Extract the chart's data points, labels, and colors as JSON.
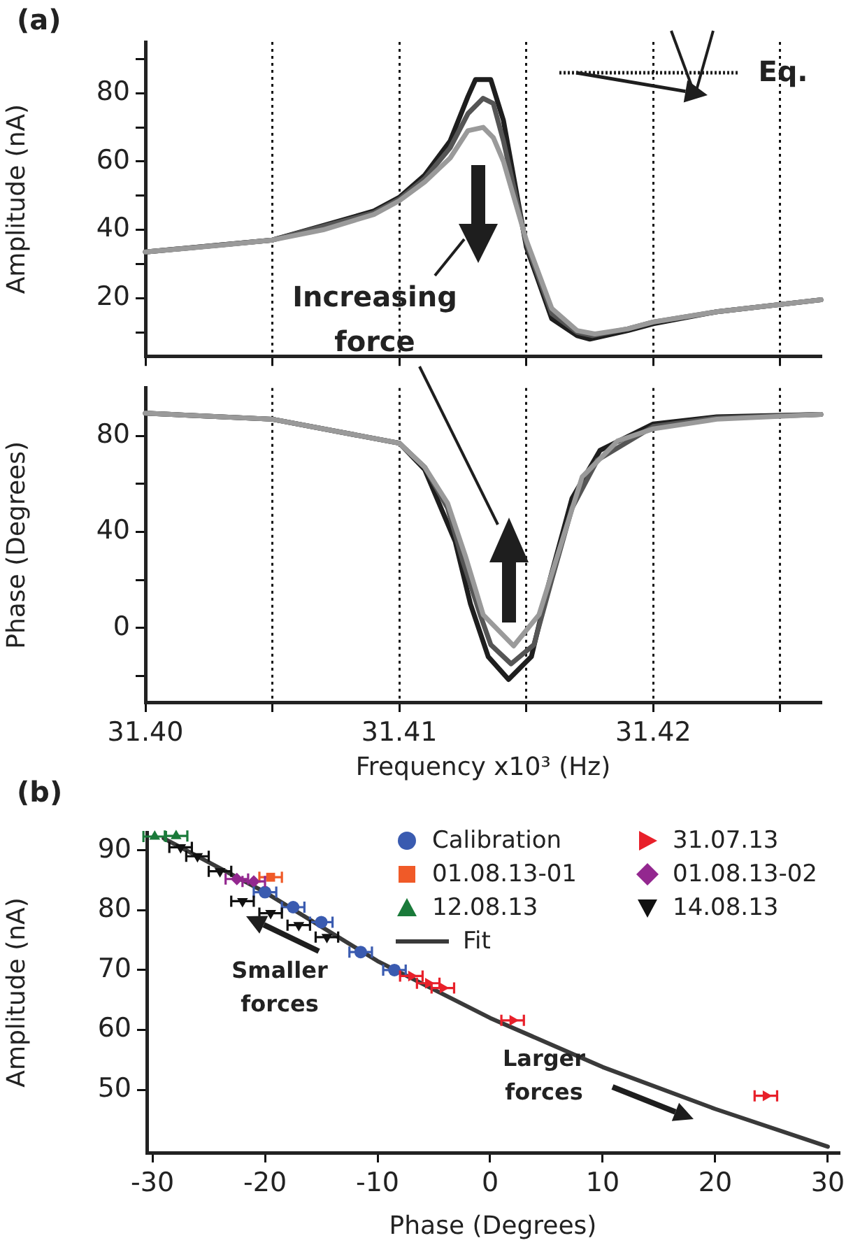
{
  "chart_data": [
    {
      "type": "line",
      "title": "(a)",
      "ylabel": "Amplitude (nA)",
      "annotations": [
        "Eq.",
        "Increasing force"
      ],
      "xlim": [
        31.4,
        31.4266
      ],
      "xticks": [
        31.4,
        31.405,
        31.41,
        31.415,
        31.42,
        31.425
      ],
      "ylim": [
        3,
        95
      ],
      "yticks": [
        {
          "value": 10,
          "label": null
        },
        20,
        {
          "value": 30,
          "label": null
        },
        40,
        {
          "value": 50,
          "label": null
        },
        60,
        {
          "value": 70,
          "label": null
        },
        80,
        {
          "value": 90,
          "label": null
        }
      ],
      "grid": "x",
      "tick_labels": "y",
      "series": [
        {
          "color": "#1e1e1e",
          "x": [
            31.4,
            31.405,
            31.409,
            31.41,
            31.411,
            31.412,
            31.4127,
            31.413,
            31.4136,
            31.4141,
            31.415,
            31.416,
            31.417,
            31.4175,
            31.419,
            31.42,
            31.4225,
            31.4266
          ],
          "values": [
            33.5,
            37,
            45.5,
            49.5,
            56,
            66,
            79,
            84,
            84,
            72,
            35,
            14,
            9,
            8,
            10.5,
            12.5,
            16,
            19.5
          ]
        },
        {
          "color": "#555555",
          "x": [
            31.4,
            31.405,
            31.409,
            31.41,
            31.411,
            31.412,
            31.4127,
            31.4133,
            31.4137,
            31.4141,
            31.415,
            31.416,
            31.417,
            31.4176,
            31.419,
            31.42,
            31.4225,
            31.4266
          ],
          "values": [
            33.5,
            37,
            45,
            49,
            55,
            64,
            74,
            78.5,
            77,
            66,
            36,
            15.5,
            10,
            9,
            11,
            13,
            16,
            19.5
          ]
        },
        {
          "color": "#9a9a9a",
          "x": [
            31.4,
            31.403,
            31.405,
            31.407,
            31.409,
            31.41,
            31.411,
            31.412,
            31.4127,
            31.4133,
            31.4137,
            31.4141,
            31.415,
            31.416,
            31.417,
            31.4177,
            31.419,
            31.42,
            31.4225,
            31.4266
          ],
          "values": [
            33.5,
            35.5,
            37,
            40,
            44.5,
            48.5,
            54,
            61,
            69,
            70,
            67,
            60,
            37,
            17,
            10.5,
            9.5,
            11,
            13,
            16,
            19.5
          ]
        }
      ]
    },
    {
      "type": "line",
      "xlabel": "Frequency x10³ (Hz)",
      "ylabel": "Phase (Degrees)",
      "xlim": [
        31.4,
        31.4266
      ],
      "xticks": [
        {
          "value": 31.4,
          "label": "31.40"
        },
        {
          "value": 31.405,
          "label": null
        },
        31.41,
        {
          "value": 31.415,
          "label": null
        },
        31.42,
        {
          "value": 31.425,
          "label": null
        }
      ],
      "ylim": [
        -31,
        100
      ],
      "yticks": [
        {
          "value": -20,
          "label": null
        },
        0,
        {
          "value": 20,
          "label": null
        },
        40,
        {
          "value": 60,
          "label": null
        },
        80
      ],
      "grid": "x",
      "series": [
        {
          "color": "#1e1e1e",
          "x": [
            31.4,
            31.405,
            31.41,
            31.411,
            31.4122,
            31.4128,
            31.4135,
            31.4143,
            31.4152,
            31.4159,
            31.4168,
            31.4179,
            31.42,
            31.4225,
            31.4266
          ],
          "values": [
            89.5,
            87,
            77,
            66,
            36,
            10,
            -12,
            -21.5,
            -12,
            19,
            54,
            74,
            85,
            88,
            89
          ]
        },
        {
          "color": "#555555",
          "x": [
            31.4,
            31.405,
            31.41,
            31.411,
            31.4119,
            31.4125,
            31.4132,
            31.4136,
            31.4144,
            31.4153,
            31.416,
            31.4168,
            31.4178,
            31.42,
            31.4225,
            31.4266
          ],
          "values": [
            89.5,
            87,
            77,
            67,
            50,
            28,
            5,
            -7,
            -15,
            -7,
            20,
            50,
            70,
            84,
            87.5,
            89
          ]
        },
        {
          "color": "#9a9a9a",
          "x": [
            31.4,
            31.405,
            31.41,
            31.411,
            31.4119,
            31.4126,
            31.4133,
            31.4145,
            31.4155,
            31.4164,
            31.4172,
            31.4186,
            31.42,
            31.4225,
            31.4266
          ],
          "values": [
            89.5,
            87,
            77,
            67,
            52,
            30,
            5.5,
            -7.5,
            5.5,
            36,
            63,
            78,
            83,
            87,
            89
          ]
        }
      ]
    },
    {
      "type": "scatter",
      "title": "(b)",
      "xlabel": "Phase (Degrees)",
      "ylabel": "Amplitude (nA)",
      "annotations": [
        "Smaller forces",
        "Larger forces"
      ],
      "xlim": [
        -30.5,
        31
      ],
      "xticks": [
        -30,
        -20,
        -10,
        0,
        10,
        20,
        30
      ],
      "ylim": [
        39.5,
        93
      ],
      "yticks": [
        50,
        60,
        70,
        80,
        90
      ],
      "legend": "top right",
      "series": [
        {
          "name": "Calibration",
          "color": "#3a5bb0",
          "marker": "circle",
          "x": [
            -20,
            -17.5,
            -15,
            -11.5,
            -8.5
          ],
          "values": [
            83,
            80.5,
            78,
            73,
            70
          ],
          "xerrors": [
            1,
            1,
            1,
            1,
            1
          ]
        },
        {
          "name": "31.07.13",
          "color": "#e8202a",
          "marker": "triangle-right",
          "x": [
            -7,
            -5.5,
            -4.2,
            2,
            24.5
          ],
          "values": [
            69,
            67.8,
            67,
            61.6,
            49
          ],
          "xerrors": [
            1,
            1,
            1,
            1,
            1
          ]
        },
        {
          "name": "01.08.13-01",
          "color": "#f05a28",
          "marker": "square",
          "x": [
            -19.5
          ],
          "values": [
            85.5
          ],
          "xerrors": [
            1
          ]
        },
        {
          "name": "01.08.13-02",
          "color": "#93278f",
          "marker": "diamond",
          "x": [
            -22.5,
            -21
          ],
          "values": [
            85.2,
            84.8
          ],
          "xerrors": [
            1,
            1
          ]
        },
        {
          "name": "12.08.13",
          "color": "#1a7a3a",
          "marker": "triangle",
          "x": [
            -29.8,
            -27.9
          ],
          "values": [
            92.3,
            92.4
          ],
          "xerrors": [
            1,
            1
          ]
        },
        {
          "name": "14.08.13",
          "color": "#111111",
          "marker": "triangle-down",
          "x": [
            -27.5,
            -26,
            -24,
            -22,
            -19.5,
            -17,
            -14.5
          ],
          "values": [
            90.5,
            89,
            86.5,
            81.5,
            79.5,
            77.5,
            75.5
          ],
          "xerrors": [
            1,
            1,
            1,
            1,
            1,
            1,
            1
          ]
        },
        {
          "name": "Fit",
          "type": "line",
          "color": "#3a3a3a",
          "x": [
            -29,
            -20,
            -10,
            0,
            10,
            20,
            30
          ],
          "values": [
            92,
            83,
            71.5,
            62,
            53.8,
            46.8,
            40.5
          ]
        }
      ]
    }
  ]
}
